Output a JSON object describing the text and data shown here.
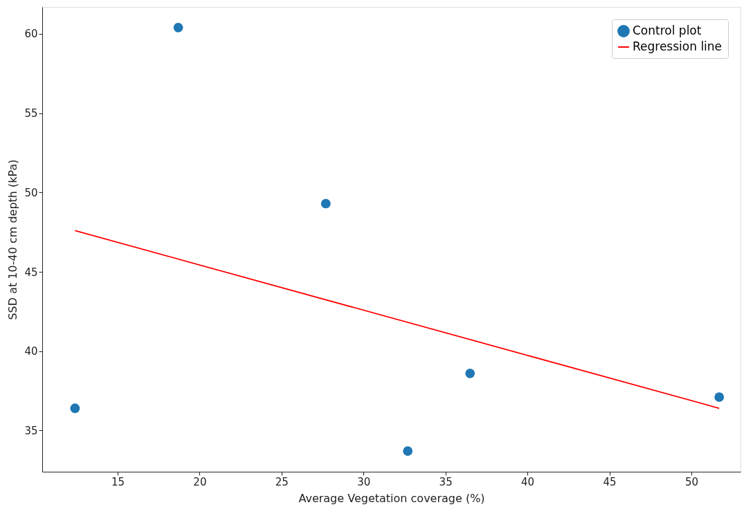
{
  "chart_data": {
    "type": "scatter",
    "xlabel": "Average Vegetation coverage (%)",
    "ylabel": "SSD at 10-40 cm depth (kPa)",
    "xlim": [
      10.4,
      53.0
    ],
    "ylim": [
      32.4,
      61.7
    ],
    "xticks": [
      15,
      20,
      25,
      30,
      35,
      40,
      45,
      50
    ],
    "yticks": [
      35,
      40,
      45,
      50,
      55,
      60
    ],
    "grid": false,
    "legend": "top right",
    "series": [
      {
        "name": "Control plot",
        "marker": "circle",
        "color": "#1f77b4",
        "x": [
          12.4,
          18.7,
          27.7,
          32.7,
          36.5,
          51.7
        ],
        "values": [
          36.4,
          60.4,
          49.3,
          33.7,
          38.6,
          37.1
        ]
      },
      {
        "name": "Regression line",
        "type": "line",
        "marker": "none",
        "color": "#ff0000",
        "line_style": "solid",
        "x": [
          12.4,
          51.7
        ],
        "values": [
          47.6,
          36.4
        ]
      }
    ]
  }
}
